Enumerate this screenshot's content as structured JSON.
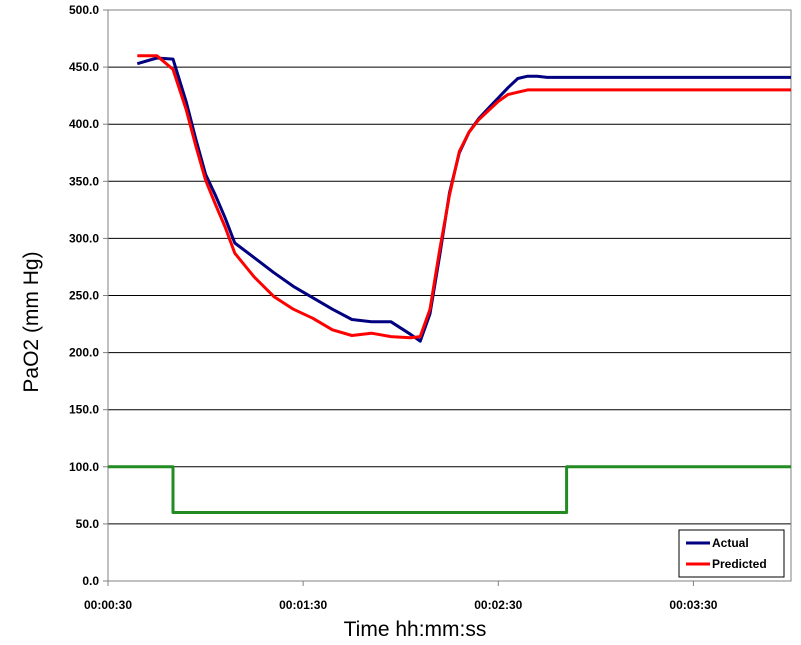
{
  "chart_data": {
    "type": "line",
    "title": "",
    "xlabel": "Time hh:mm:ss",
    "ylabel": "PaO2 (mm Hg)",
    "ylim": [
      0,
      500
    ],
    "xlim_seconds": [
      30,
      240
    ],
    "grid": "horizontal",
    "legend_position": "bottom-right",
    "x_tick_labels": [
      "00:00:30",
      "00:01:30",
      "00:02:30",
      "00:03:30"
    ],
    "x_tick_seconds": [
      30,
      90,
      150,
      210
    ],
    "y_tick_labels": [
      "0.0",
      "50.0",
      "100.0",
      "150.0",
      "200.0",
      "250.0",
      "300.0",
      "350.0",
      "400.0",
      "450.0",
      "500.0"
    ],
    "series": [
      {
        "name": "Actual",
        "color": "#000080",
        "x": [
          39,
          45,
          50,
          54,
          57,
          60,
          63,
          66,
          69,
          75,
          81,
          87,
          93,
          99,
          105,
          111,
          117,
          123,
          126,
          129,
          132,
          135,
          138,
          141,
          144,
          147,
          150,
          153,
          156,
          159,
          162,
          165,
          168,
          171,
          174,
          177,
          180,
          183,
          186,
          189,
          192,
          195,
          198,
          201,
          204,
          207,
          210,
          213,
          216,
          219,
          222,
          225,
          228,
          231,
          234,
          237,
          240
        ],
        "y": [
          453,
          458,
          457,
          420,
          387,
          356,
          338,
          318,
          296,
          283,
          270,
          258,
          248,
          238,
          229,
          227,
          227,
          216,
          210,
          234,
          285,
          340,
          375,
          393,
          405,
          414,
          423,
          432,
          440,
          442,
          442,
          441,
          441,
          441,
          441,
          441,
          441,
          441,
          441,
          441,
          441,
          441,
          441,
          441,
          441,
          441,
          441,
          441,
          441,
          441,
          441,
          441,
          441,
          441,
          441,
          441,
          441
        ],
        "y_note": ""
      },
      {
        "name": "Predicted",
        "color": "#ff0000",
        "x": [
          39,
          45,
          50,
          54,
          57,
          60,
          63,
          66,
          69,
          75,
          81,
          87,
          93,
          99,
          105,
          111,
          117,
          123,
          126,
          129,
          132,
          135,
          138,
          141,
          144,
          147,
          150,
          153,
          156,
          159,
          162,
          165,
          168,
          171,
          174,
          177,
          180,
          183,
          186,
          189,
          192,
          195,
          198,
          201,
          204,
          207,
          210,
          213,
          216,
          219,
          222,
          225,
          228,
          231,
          234,
          237,
          240
        ],
        "y": [
          460,
          460,
          448,
          413,
          381,
          351,
          330,
          310,
          287,
          266,
          249,
          238,
          230,
          220,
          215,
          217,
          214,
          213,
          214,
          238,
          290,
          338,
          376,
          393,
          404,
          412,
          420,
          426,
          428,
          430,
          430,
          430,
          430,
          430,
          430,
          430,
          430,
          430,
          430,
          430,
          430,
          430,
          430,
          430,
          430,
          430,
          430,
          430,
          430,
          430,
          430,
          430,
          430,
          430,
          430,
          430,
          430
        ]
      },
      {
        "name": "",
        "color": "#228b22",
        "x": [
          30,
          50,
          50,
          171,
          171,
          240
        ],
        "y": [
          100,
          100,
          60,
          60,
          100,
          100
        ]
      }
    ]
  }
}
